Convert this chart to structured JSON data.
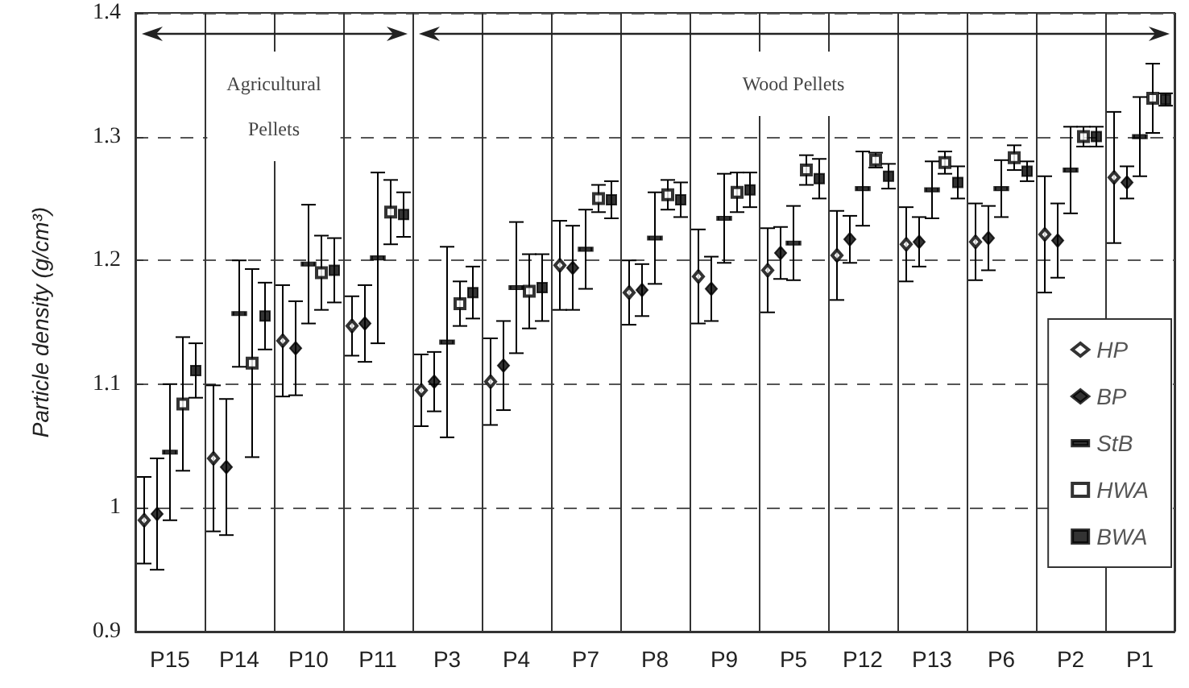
{
  "chart_data": {
    "type": "scatter",
    "ylabel": "Particle density (g/cm³)",
    "categories": [
      "P15",
      "P14",
      "P10",
      "P11",
      "P3",
      "P4",
      "P7",
      "P8",
      "P9",
      "P5",
      "P12",
      "P13",
      "P6",
      "P2",
      "P1"
    ],
    "series": [
      {
        "name": "HP",
        "color": "#000000",
        "marker": "diamond-open",
        "values": [
          0.99,
          1.04,
          1.135,
          1.147,
          1.095,
          1.102,
          1.196,
          1.174,
          1.187,
          1.192,
          1.204,
          1.213,
          1.215,
          1.221,
          1.267
        ],
        "errors": [
          0.035,
          0.059,
          0.045,
          0.024,
          0.029,
          0.035,
          0.036,
          0.026,
          0.038,
          0.034,
          0.036,
          0.03,
          0.031,
          0.047,
          0.053
        ]
      },
      {
        "name": "BP",
        "color": "#000000",
        "marker": "diamond",
        "values": [
          0.995,
          1.033,
          1.129,
          1.149,
          1.102,
          1.115,
          1.194,
          1.176,
          1.177,
          1.206,
          1.217,
          1.215,
          1.218,
          1.216,
          1.263
        ],
        "errors": [
          0.045,
          0.055,
          0.038,
          0.031,
          0.024,
          0.036,
          0.034,
          0.021,
          0.026,
          0.021,
          0.019,
          0.02,
          0.026,
          0.03,
          0.013
        ]
      },
      {
        "name": "StB",
        "color": "#000000",
        "values": [
          1.045,
          1.157,
          1.197,
          1.202,
          1.134,
          1.178,
          1.209,
          1.218,
          1.234,
          1.214,
          1.258,
          1.257,
          1.258,
          1.273,
          1.3
        ],
        "errors": [
          0.055,
          0.043,
          0.048,
          0.069,
          0.077,
          0.053,
          0.032,
          0.037,
          0.036,
          0.03,
          0.03,
          0.023,
          0.023,
          0.035,
          0.032
        ]
      },
      {
        "name": "HWA",
        "color": "#000000",
        "marker": "square-open",
        "values": [
          1.084,
          1.117,
          1.19,
          1.239,
          1.165,
          1.175,
          1.25,
          1.253,
          1.255,
          1.273,
          1.281,
          1.279,
          1.283,
          1.3,
          1.331
        ],
        "errors": [
          0.054,
          0.076,
          0.03,
          0.026,
          0.018,
          0.03,
          0.011,
          0.012,
          0.016,
          0.012,
          0.006,
          0.009,
          0.01,
          0.008,
          0.028
        ]
      },
      {
        "name": "BWA",
        "color": "#000000",
        "marker": "square",
        "values": [
          1.111,
          1.155,
          1.192,
          1.237,
          1.174,
          1.178,
          1.249,
          1.249,
          1.257,
          1.266,
          1.268,
          1.263,
          1.272,
          1.3,
          1.33
        ],
        "errors": [
          0.022,
          0.027,
          0.026,
          0.018,
          0.021,
          0.027,
          0.015,
          0.014,
          0.014,
          0.016,
          0.01,
          0.013,
          0.008,
          0.008,
          0.005
        ]
      }
    ],
    "ylim": [
      0.9,
      1.4
    ],
    "yticks": [
      0.9,
      1,
      1.1,
      1.2,
      1.3,
      1.4
    ],
    "grid": true,
    "legend": "bottom right",
    "annotations": [
      "Agricultural\nPellets",
      "Wood Pellets"
    ]
  }
}
